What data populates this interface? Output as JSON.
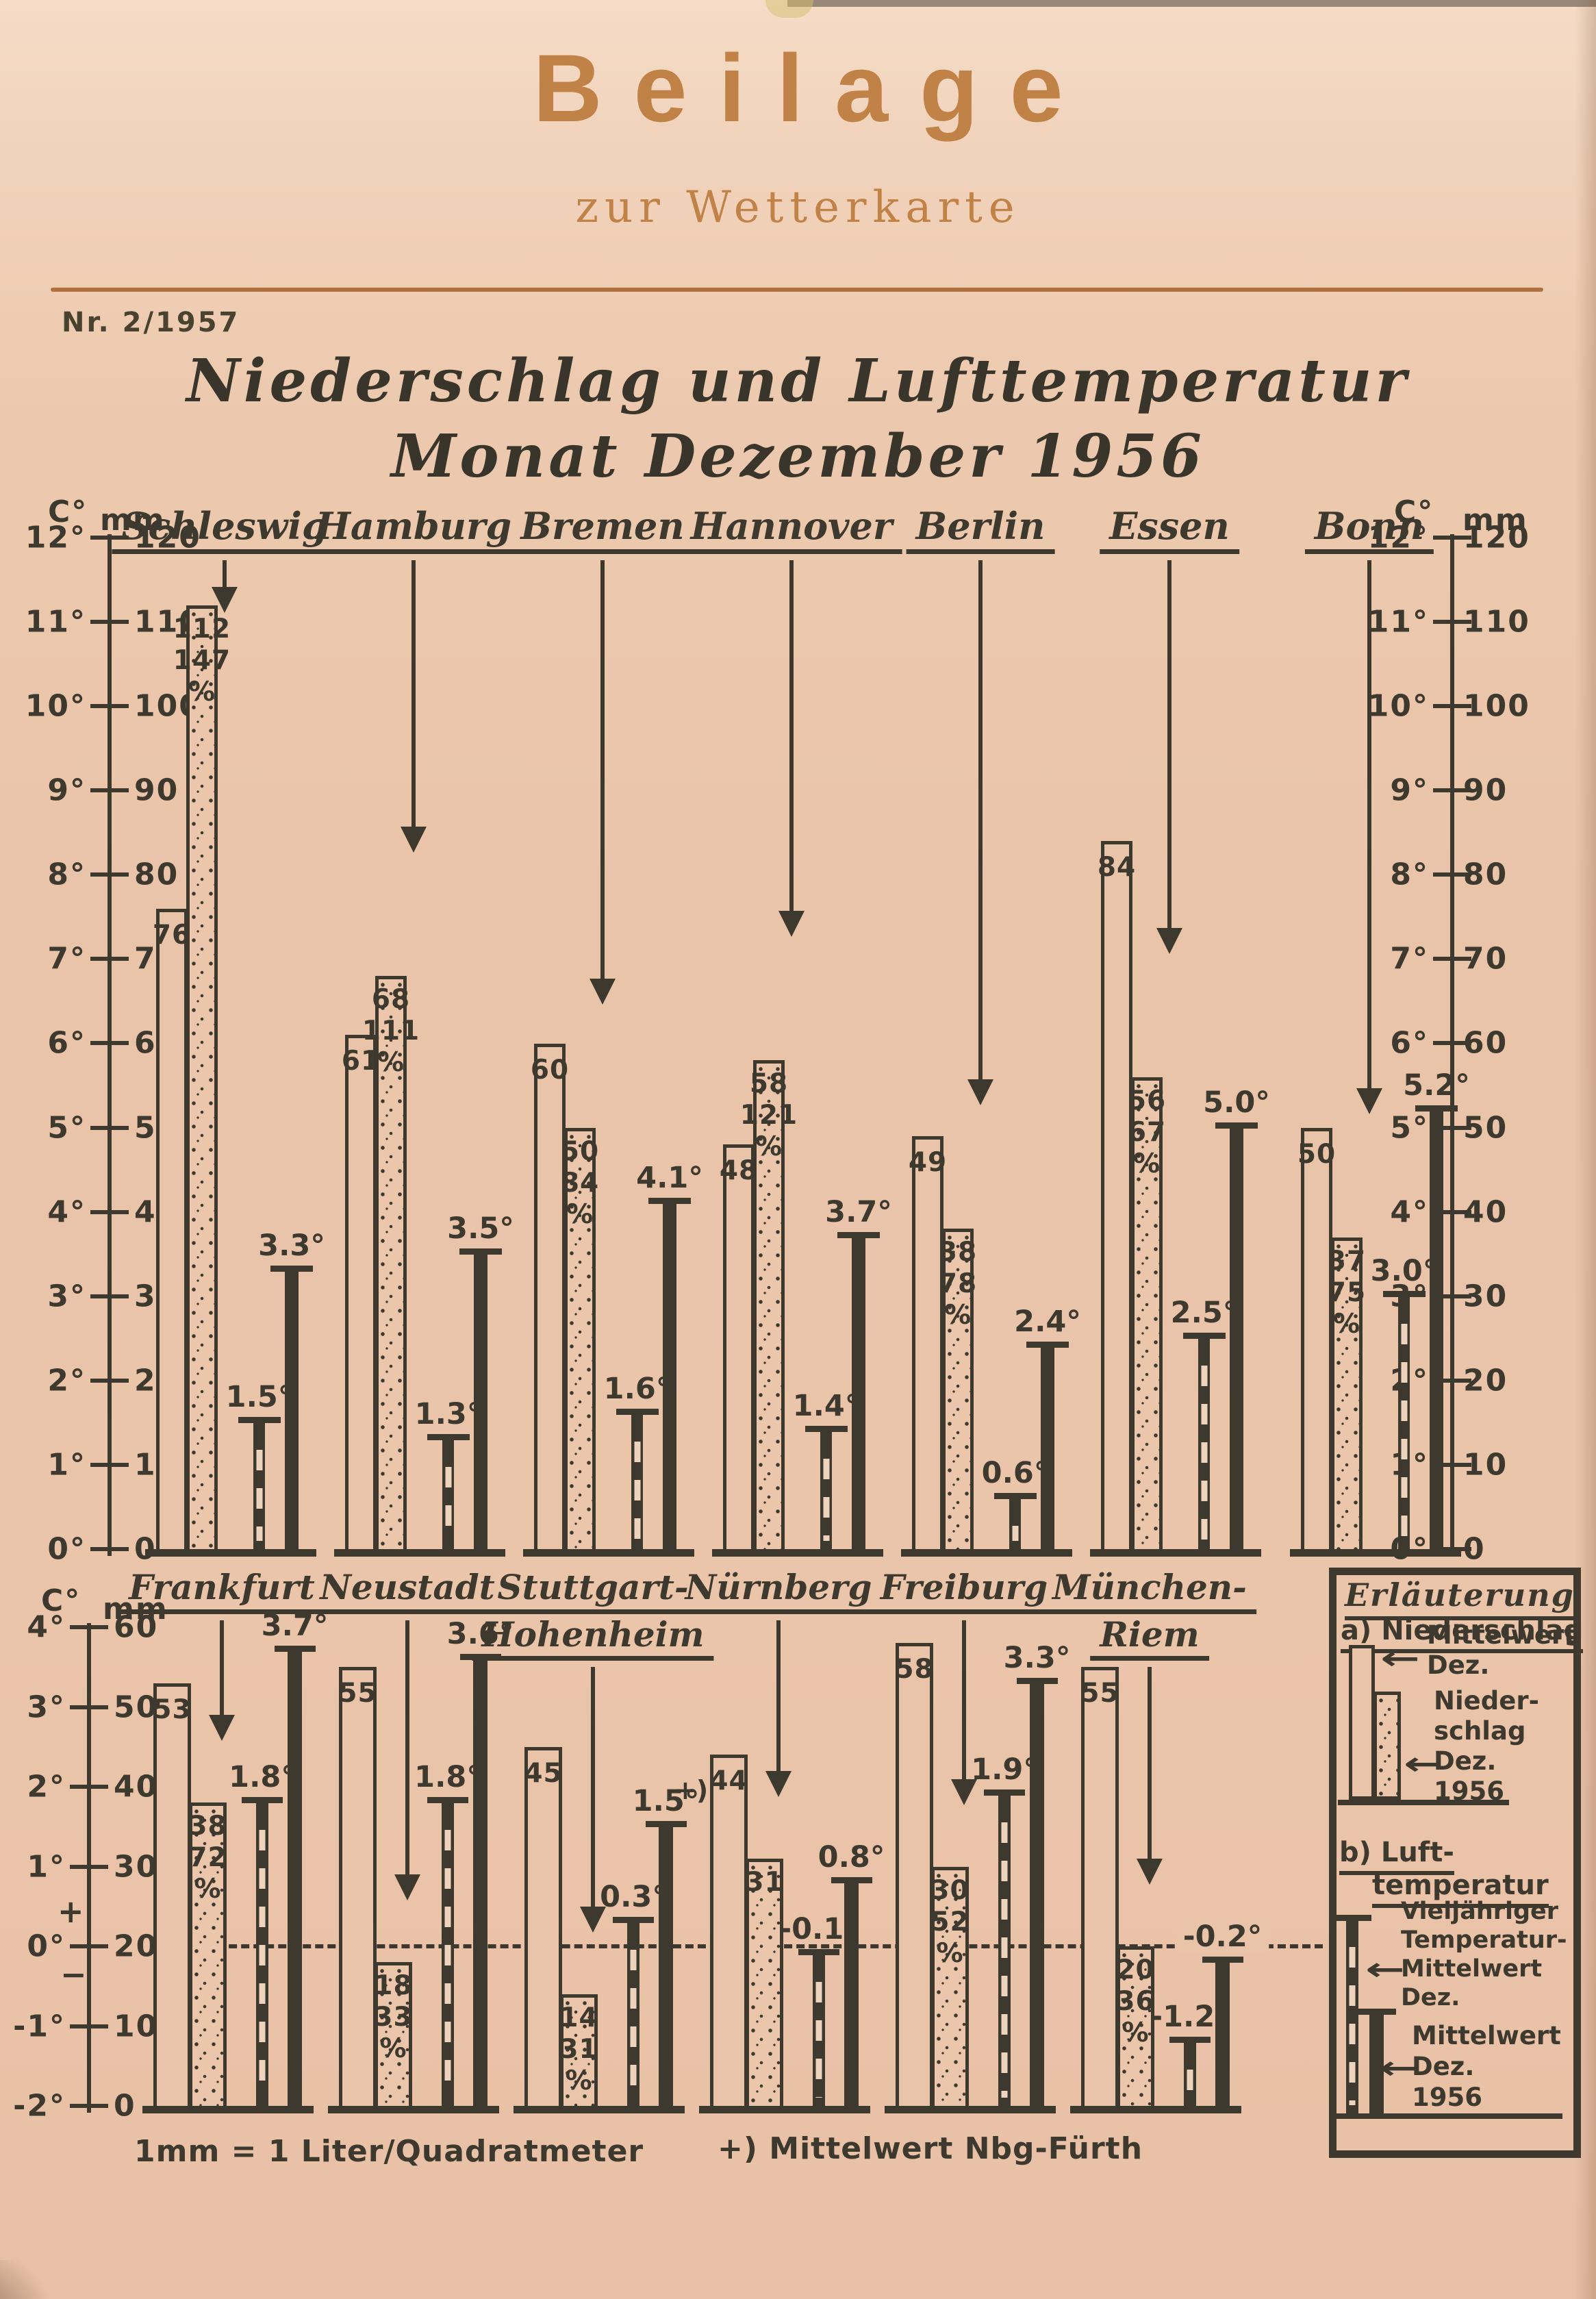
{
  "masthead": {
    "title": "Beilage",
    "subtitle": "zur Wetterkarte",
    "issue": "Nr. 2/1957"
  },
  "title": {
    "line1": "Niederschlag und Lufttemperatur",
    "line2": "Monat Dezember 1956"
  },
  "footnotes": {
    "left": "1mm = 1 Liter/Quadratmeter",
    "right": "+) Mittelwert Nbg-Fürth"
  },
  "colors": {
    "paper": "#eac4a9",
    "ink": "#3e392f",
    "accent": "#c08247",
    "rule": "#b1703d"
  },
  "axis_labels": {
    "temp_unit": "C°",
    "mm_unit": "mm",
    "plus": "+",
    "minus": "−"
  },
  "percent_sign": "%",
  "chart_data": {
    "type": "bar",
    "title": "Niederschlag und Lufttemperatur Monat Dezember 1956",
    "subtitle_issue": "Nr. 2/1957",
    "units": {
      "precipitation": "mm",
      "temperature": "C°"
    },
    "note": "1mm = 1 Liter/Quadratmeter",
    "panels": [
      {
        "id": "north",
        "mm_axis": {
          "min": 0,
          "max": 120,
          "step": 10
        },
        "temp_axis": {
          "min": 0,
          "max": 12,
          "step": 1
        },
        "ticks": [
          {
            "c": "12°",
            "mm": "120"
          },
          {
            "c": "11°",
            "mm": "110"
          },
          {
            "c": "10°",
            "mm": "100"
          },
          {
            "c": "9°",
            "mm": "90"
          },
          {
            "c": "8°",
            "mm": "80"
          },
          {
            "c": "7°",
            "mm": "70"
          },
          {
            "c": "6°",
            "mm": "60"
          },
          {
            "c": "5°",
            "mm": "50"
          },
          {
            "c": "4°",
            "mm": "40"
          },
          {
            "c": "3°",
            "mm": "30"
          },
          {
            "c": "2°",
            "mm": "20"
          },
          {
            "c": "1°",
            "mm": "10"
          },
          {
            "c": "0°",
            "mm": "0"
          }
        ],
        "cities": [
          {
            "name": [
              "Schleswig"
            ],
            "mean_mm": 76,
            "dec1956_mm": 112,
            "dec1956_pct": "147",
            "temp_mean_c": 1.5,
            "temp_mean_label": "1.5°",
            "temp_1956_c": 3.3,
            "temp_1956_label": "3.3°"
          },
          {
            "name": [
              "Hamburg"
            ],
            "mean_mm": 61,
            "dec1956_mm": 68,
            "dec1956_pct": "111",
            "temp_mean_c": 1.3,
            "temp_mean_label": "1.3°",
            "temp_1956_c": 3.5,
            "temp_1956_label": "3.5°"
          },
          {
            "name": [
              "Bremen"
            ],
            "mean_mm": 60,
            "dec1956_mm": 50,
            "dec1956_pct": "84",
            "temp_mean_c": 1.6,
            "temp_mean_label": "1.6°",
            "temp_1956_c": 4.1,
            "temp_1956_label": "4.1°"
          },
          {
            "name": [
              "Hannover"
            ],
            "mean_mm": 48,
            "dec1956_mm": 58,
            "dec1956_pct": "121",
            "temp_mean_c": 1.4,
            "temp_mean_label": "1.4°",
            "temp_1956_c": 3.7,
            "temp_1956_label": "3.7°"
          },
          {
            "name": [
              "Berlin"
            ],
            "mean_mm": 49,
            "dec1956_mm": 38,
            "dec1956_pct": "78",
            "temp_mean_c": 0.6,
            "temp_mean_label": "0.6°",
            "temp_1956_c": 2.4,
            "temp_1956_label": "2.4°"
          },
          {
            "name": [
              "Essen"
            ],
            "mean_mm": 84,
            "dec1956_mm": 56,
            "dec1956_pct": "67",
            "temp_mean_c": 2.5,
            "temp_mean_label": "2.5°",
            "temp_1956_c": 5.0,
            "temp_1956_label": "5.0°"
          },
          {
            "name": [
              "Bonn"
            ],
            "mean_mm": 50,
            "dec1956_mm": 37,
            "dec1956_pct": "75",
            "temp_mean_c": 3.0,
            "temp_mean_label": "3.0°",
            "temp_1956_c": 5.2,
            "temp_1956_label": "5.2°"
          }
        ]
      },
      {
        "id": "south",
        "mm_axis": {
          "min": 0,
          "max": 60,
          "step": 10
        },
        "temp_axis": {
          "min": -2,
          "max": 4,
          "step": 1
        },
        "zero_line_mm": 20,
        "ticks": [
          {
            "c": "4°",
            "mm": "60"
          },
          {
            "c": "3°",
            "mm": "50"
          },
          {
            "c": "2°",
            "mm": "40"
          },
          {
            "c": "1°",
            "mm": "30"
          },
          {
            "c": "0°",
            "mm": "20"
          },
          {
            "c": "-1°",
            "mm": "10"
          },
          {
            "c": "-2°",
            "mm": "0"
          }
        ],
        "cities": [
          {
            "name": [
              "Frankfurt"
            ],
            "mean_mm": 53,
            "dec1956_mm": 38,
            "dec1956_pct": "72",
            "temp_mean_c": 1.8,
            "temp_mean_label": "1.8°",
            "temp_1956_c": 3.7,
            "temp_1956_label": "3.7°"
          },
          {
            "name": [
              "Neustadt"
            ],
            "mean_mm": 55,
            "dec1956_mm": 18,
            "dec1956_pct": "33",
            "temp_mean_c": 1.8,
            "temp_mean_label": "1.8°",
            "temp_1956_c": 3.6,
            "temp_1956_label": "3.6°"
          },
          {
            "name": [
              "Stuttgart-",
              "Hohenheim"
            ],
            "mean_mm": 45,
            "dec1956_mm": 14,
            "dec1956_pct": "31",
            "temp_mean_c": 0.3,
            "temp_mean_label": "0.3°",
            "temp_1956_c": 1.5,
            "temp_1956_label": "1.5°"
          },
          {
            "name": [
              "Nürnberg"
            ],
            "mean_mm": 44,
            "dec1956_mm": 31,
            "dec1956_pct": null,
            "mean_marker": "+)",
            "temp_mean_c": -0.1,
            "temp_mean_label": "-0.1°",
            "temp_1956_c": 0.8,
            "temp_1956_label": "0.8°"
          },
          {
            "name": [
              "Freiburg"
            ],
            "mean_mm": 58,
            "dec1956_mm": 30,
            "dec1956_pct": "52",
            "temp_mean_c": 1.9,
            "temp_mean_label": "1.9°",
            "temp_1956_c": 3.3,
            "temp_1956_label": "3.3°"
          },
          {
            "name": [
              "München-",
              "Riem"
            ],
            "mean_mm": 55,
            "dec1956_mm": 20,
            "dec1956_pct": "36",
            "temp_mean_c": -1.2,
            "temp_mean_label": "-1.2°",
            "temp_1956_c": -0.2,
            "temp_1956_label": "-0.2°",
            "temp_1956_on_line": true
          }
        ]
      }
    ]
  },
  "legend": {
    "title": "Erläuterung",
    "a_heading": "a) Niederschlag",
    "a_mean_lines": [
      "Mittelwert",
      "Dez."
    ],
    "a_1956_lines": [
      "Nieder-",
      "schlag",
      "Dez.",
      "1956"
    ],
    "b_heading_line1": "b) Luft-",
    "b_heading_line2": "temperatur",
    "b_mean_lines": [
      "Vieljähriger",
      "Temperatur-",
      "Mittelwert",
      "Dez."
    ],
    "b_1956_lines": [
      "Mittelwert",
      "Dez.",
      "1956"
    ],
    "arrow": "←"
  }
}
